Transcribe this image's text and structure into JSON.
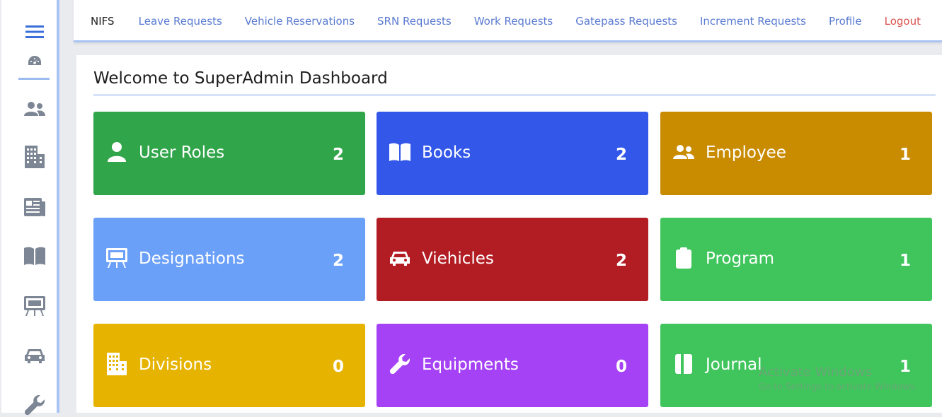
{
  "sidebar": {
    "items": [
      {
        "icon": "hamburger-menu-icon"
      },
      {
        "icon": "dashboard-gauge-icon"
      },
      {
        "icon": "users-icon"
      },
      {
        "icon": "building-icon"
      },
      {
        "icon": "newspaper-icon"
      },
      {
        "icon": "book-icon"
      },
      {
        "icon": "chalkboard-icon"
      },
      {
        "icon": "car-icon"
      },
      {
        "icon": "wrench-icon"
      }
    ]
  },
  "topbar": {
    "brand": "NIFS",
    "nav": [
      "Leave Requests",
      "Vehicle Reservations",
      "SRN Requests",
      "Work Requests",
      "Gatepass Requests",
      "Increment Requests",
      "Profile",
      "Logout"
    ]
  },
  "main": {
    "title": "Welcome to SuperAdmin Dashboard",
    "cards": [
      {
        "label": "User Roles",
        "value": "2",
        "icon": "user-icon",
        "color": "#31a54a"
      },
      {
        "label": "Books",
        "value": "2",
        "icon": "book-icon",
        "color": "#3358e9"
      },
      {
        "label": "Employee",
        "value": "1",
        "icon": "users-icon",
        "color": "#c98b00"
      },
      {
        "label": "Designations",
        "value": "2",
        "icon": "chalkboard-icon",
        "color": "#6ba0f8"
      },
      {
        "label": "Viehicles",
        "value": "2",
        "icon": "car-icon",
        "color": "#b21c23"
      },
      {
        "label": "Program",
        "value": "1",
        "icon": "clipboard-icon",
        "color": "#3fc55c"
      },
      {
        "label": "Divisions",
        "value": "0",
        "icon": "building-icon",
        "color": "#e6b400"
      },
      {
        "label": "Equipments",
        "value": "0",
        "icon": "wrench-icon",
        "color": "#a542f5"
      },
      {
        "label": "Journal",
        "value": "1",
        "icon": "journal-icon",
        "color": "#3fc55c"
      }
    ]
  },
  "watermark": {
    "line1": "Activate Windows",
    "line2": "Go to Settings to activate Windows."
  }
}
